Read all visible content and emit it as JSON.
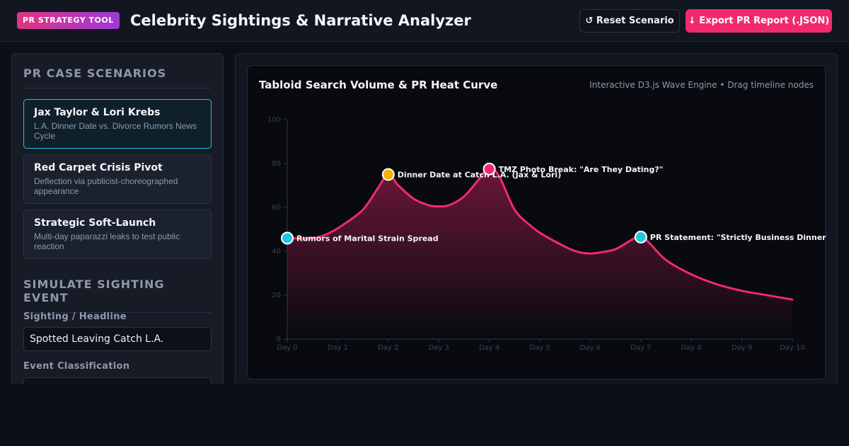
{
  "header": {
    "badge": "PR STRATEGY TOOL",
    "title": "Celebrity Sightings & Narrative Analyzer",
    "reset_label": "↺ Reset Scenario",
    "export_label": "↓ Export PR Report (.JSON)"
  },
  "sidebar": {
    "scenarios_title": "PR CASE SCENARIOS",
    "scenarios": [
      {
        "name": "Jax Taylor & Lori Krebs",
        "desc": "L.A. Dinner Date vs. Divorce Rumors News Cycle",
        "active": true
      },
      {
        "name": "Red Carpet Crisis Pivot",
        "desc": "Deflection via publicist-choreographed appearance",
        "active": false
      },
      {
        "name": "Strategic Soft-Launch",
        "desc": "Multi-day paparazzi leaks to test public reaction",
        "active": false
      }
    ],
    "simulate_title": "SIMULATE SIGHTING EVENT",
    "headline_label": "Sighting / Headline",
    "headline_value": "Spotted Leaving Catch L.A.",
    "classification_label": "Event Classification"
  },
  "chart_panel": {
    "title": "Tabloid Search Volume & PR Heat Curve",
    "subtitle": "Interactive D3.js Wave Engine • Drag timeline nodes"
  },
  "colors": {
    "accent_pink": "#f2296e",
    "accent_cyan": "#1ec8dc",
    "accent_amber": "#f5b000",
    "badge_gradient_start": "#e0357f",
    "badge_gradient_end": "#9b3ad6"
  },
  "chart_data": {
    "type": "area",
    "xlabel": "",
    "ylabel": "",
    "xlim": [
      0,
      10
    ],
    "ylim": [
      0,
      100
    ],
    "x_ticks": [
      "Day 0",
      "Day 1",
      "Day 2",
      "Day 3",
      "Day 4",
      "Day 5",
      "Day 6",
      "Day 7",
      "Day 8",
      "Day 9",
      "Day 10"
    ],
    "y_ticks": [
      0,
      20,
      40,
      60,
      80,
      100
    ],
    "grid": false,
    "series": [
      {
        "x": [
          0,
          0.5,
          0.8,
          1.1,
          1.5,
          1.8,
          2.0,
          2.2,
          2.5,
          2.8,
          3.0,
          3.2,
          3.5,
          3.8,
          4.0,
          4.2,
          4.5,
          4.8,
          5.0,
          5.3,
          5.6,
          5.8,
          6.0,
          6.2,
          6.5,
          6.8,
          7.0,
          7.2,
          7.5,
          8.0,
          8.5,
          9.0,
          9.5,
          10.0
        ],
        "y": [
          46,
          46,
          48,
          52,
          59,
          69,
          75,
          70,
          64,
          61,
          60.5,
          61,
          65,
          73,
          78,
          74,
          59,
          52,
          48.5,
          44.5,
          41,
          39.5,
          39,
          39.5,
          41,
          45,
          47,
          43,
          36,
          29.5,
          25,
          22,
          20,
          18
        ]
      }
    ],
    "events": [
      {
        "day": 0,
        "value": 46,
        "label": "Rumors of Marital Strain Spread",
        "color": "#1ec8dc"
      },
      {
        "day": 2,
        "value": 75,
        "label": "Dinner Date at Catch L.A. (Jax & Lori)",
        "color": "#f5b000"
      },
      {
        "day": 4,
        "value": 77.5,
        "label": "TMZ Photo Break: \"Are They Dating?\"",
        "color": "#f2296e"
      },
      {
        "day": 7,
        "value": 46.5,
        "label": "PR Statement: \"Strictly Business Dinner\"",
        "color": "#1ec8dc"
      }
    ]
  }
}
